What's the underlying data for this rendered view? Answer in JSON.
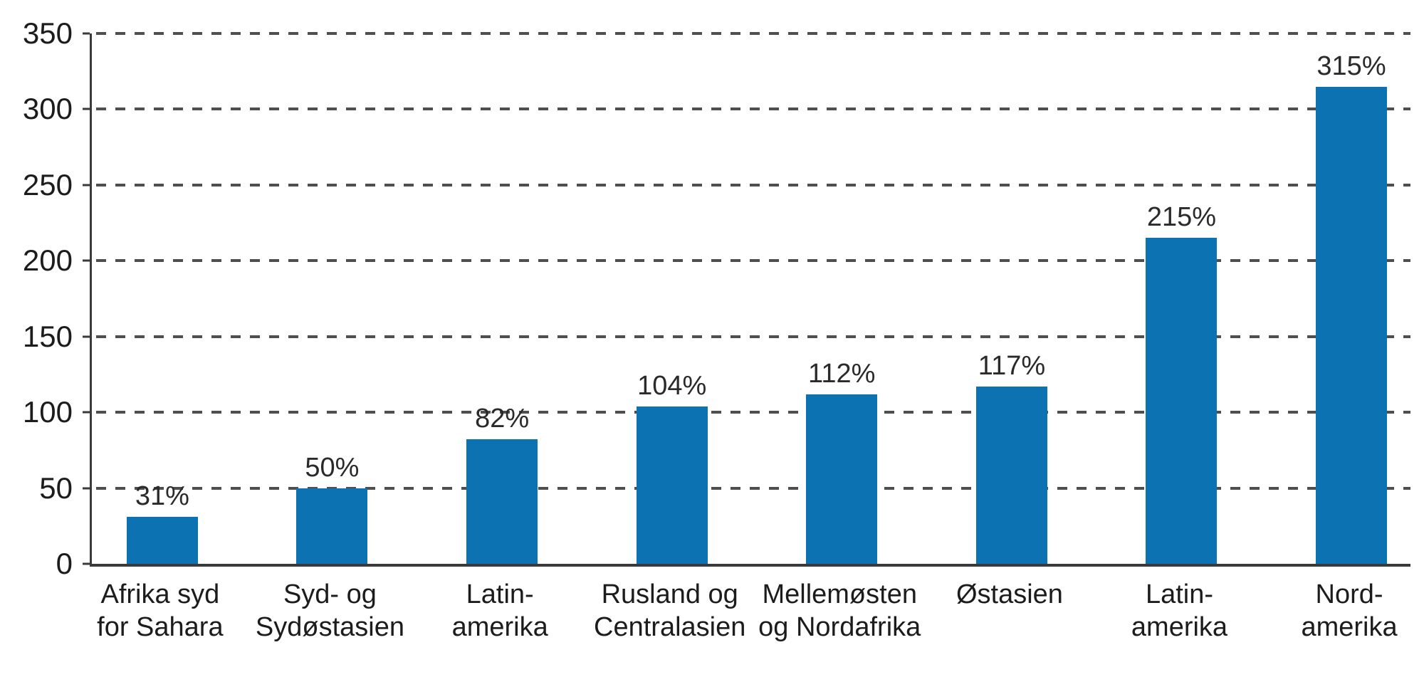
{
  "chart_data": {
    "type": "bar",
    "title": "",
    "xlabel": "",
    "ylabel": "",
    "ylim": [
      0,
      350
    ],
    "y_ticks": [
      0,
      50,
      100,
      150,
      200,
      250,
      300,
      350
    ],
    "grid": "dashed-horizontal",
    "legend": "none",
    "categories": [
      "Afrika syd for Sahara",
      "Syd- og Sydøstasien",
      "Latin-amerika",
      "Rusland og Centralasien",
      "Mellemøsten og Nordafrika",
      "Østasien",
      "Latin-amerika",
      "Nord-amerika"
    ],
    "category_label_lines": [
      [
        "Afrika syd",
        "for Sahara"
      ],
      [
        "Syd- og",
        "Sydøstasien"
      ],
      [
        "Latin-",
        "amerika"
      ],
      [
        "Rusland og",
        "Centralasien"
      ],
      [
        "Mellemøsten",
        "og Nordafrika"
      ],
      [
        "Østasien"
      ],
      [
        "Latin-",
        "amerika"
      ],
      [
        "Nord-",
        "amerika"
      ]
    ],
    "values": [
      31,
      50,
      82,
      104,
      112,
      117,
      215,
      315
    ],
    "value_labels": [
      "31%",
      "50%",
      "82%",
      "104%",
      "112%",
      "117%",
      "215%",
      "315%"
    ],
    "colors": {
      "bar": "#0d72b2",
      "gridline": "#4f4f4f",
      "axis": "#3a3a3a",
      "text": "#1c1c1c"
    },
    "layout": {
      "bar_centers_pct": [
        5.34,
        18.22,
        31.11,
        43.99,
        56.87,
        69.76,
        82.64,
        95.52
      ]
    }
  }
}
